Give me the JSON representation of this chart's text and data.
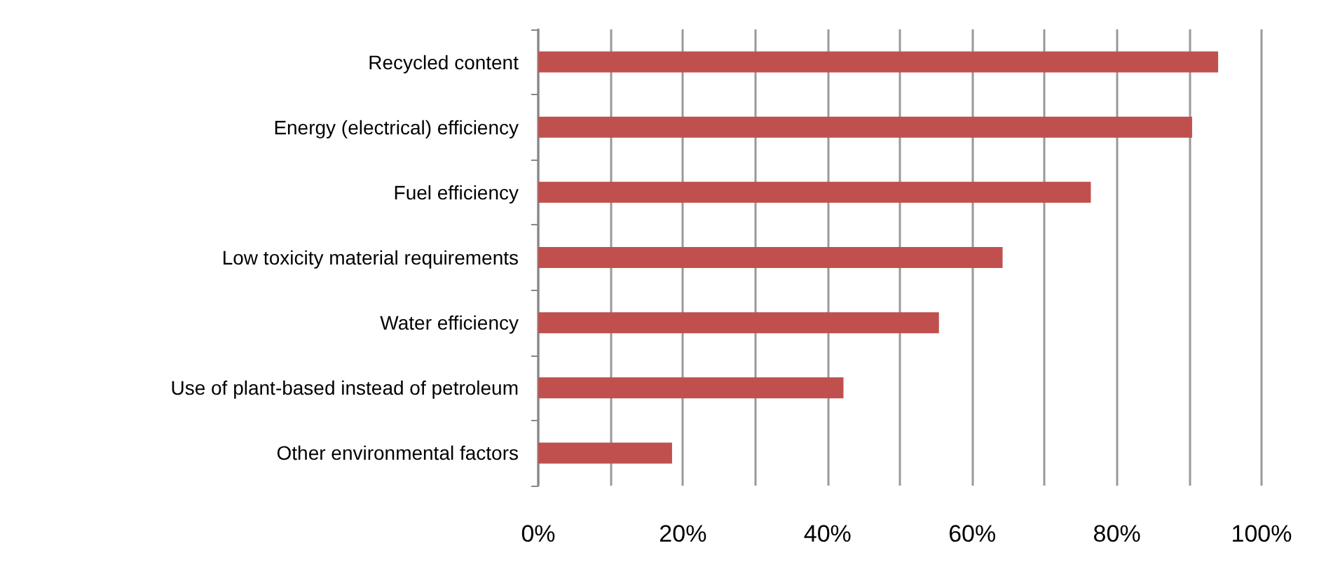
{
  "chart_data": {
    "type": "bar",
    "orientation": "horizontal",
    "categories": [
      "Recycled content",
      "Energy (electrical) efficiency",
      "Fuel efficiency",
      "Low toxicity material requirements",
      "Water efficiency",
      "Use of plant-based instead of petroleum",
      "Other environmental factors"
    ],
    "values": [
      94.0,
      90.4,
      76.4,
      64.2,
      55.4,
      42.2,
      18.5
    ],
    "color": "#c0504d",
    "xlim": [
      0,
      100
    ],
    "xticks": [
      {
        "value": 0,
        "label": "0%"
      },
      {
        "value": 10,
        "label": null
      },
      {
        "value": 20,
        "label": "20%"
      },
      {
        "value": 30,
        "label": null
      },
      {
        "value": 40,
        "label": "40%"
      },
      {
        "value": 50,
        "label": null
      },
      {
        "value": 60,
        "label": "60%"
      },
      {
        "value": 70,
        "label": null
      },
      {
        "value": 80,
        "label": "80%"
      },
      {
        "value": 90,
        "label": null
      },
      {
        "value": 100,
        "label": "100%"
      }
    ],
    "grid": "x"
  }
}
